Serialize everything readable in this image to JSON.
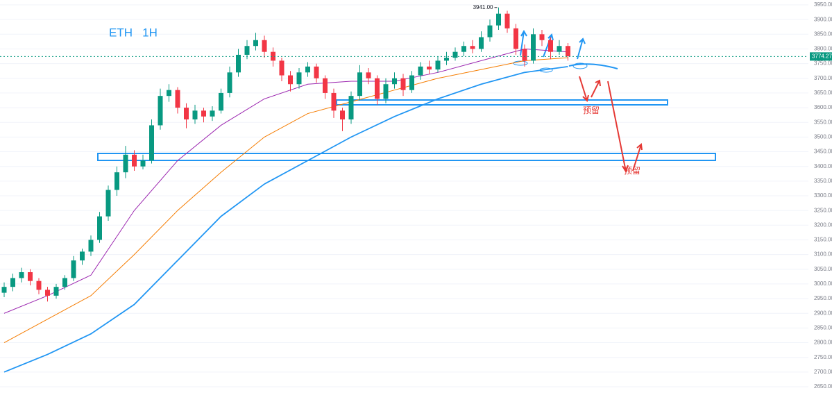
{
  "chart_data": {
    "type": "candlestick",
    "title": "ETH   1H",
    "open": [
      2970,
      2990,
      3020,
      3040,
      3010,
      2980,
      2960,
      2990,
      3020,
      3080,
      3110,
      3150,
      3230,
      3320,
      3380,
      3440,
      3400,
      3420,
      3540,
      3640,
      3660,
      3600,
      3560,
      3590,
      3570,
      3590,
      3650,
      3720,
      3780,
      3810,
      3830,
      3790,
      3760,
      3710,
      3680,
      3720,
      3740,
      3700,
      3650,
      3590,
      3560,
      3640,
      3720,
      3700,
      3630,
      3680,
      3700,
      3660,
      3710,
      3740,
      3730,
      3760,
      3770,
      3790,
      3810,
      3800,
      3840,
      3880,
      3920,
      3870,
      3800,
      3760,
      3850,
      3830,
      3790,
      3810
    ],
    "high": [
      3005,
      3035,
      3055,
      3050,
      3020,
      2990,
      3000,
      3030,
      3095,
      3120,
      3165,
      3245,
      3335,
      3400,
      3470,
      3455,
      3440,
      3560,
      3665,
      3680,
      3670,
      3615,
      3610,
      3600,
      3605,
      3665,
      3740,
      3800,
      3830,
      3855,
      3845,
      3805,
      3770,
      3725,
      3735,
      3755,
      3750,
      3710,
      3665,
      3600,
      3655,
      3745,
      3735,
      3710,
      3700,
      3720,
      3715,
      3725,
      3755,
      3760,
      3775,
      3790,
      3805,
      3825,
      3830,
      3860,
      3900,
      3941,
      3930,
      3885,
      3815,
      3870,
      3865,
      3840,
      3830,
      3820
    ],
    "low": [
      2955,
      2975,
      3005,
      2995,
      2965,
      2940,
      2950,
      2980,
      3010,
      3065,
      3095,
      3140,
      3215,
      3300,
      3360,
      3385,
      3390,
      3410,
      3525,
      3620,
      3580,
      3530,
      3545,
      3550,
      3555,
      3580,
      3635,
      3705,
      3765,
      3795,
      3770,
      3740,
      3690,
      3655,
      3665,
      3705,
      3685,
      3630,
      3565,
      3520,
      3545,
      3625,
      3680,
      3610,
      3615,
      3665,
      3640,
      3650,
      3695,
      3715,
      3720,
      3745,
      3760,
      3775,
      3785,
      3790,
      3825,
      3865,
      3855,
      3780,
      3740,
      3750,
      3810,
      3765,
      3780,
      3760
    ],
    "close": [
      2990,
      3020,
      3040,
      3010,
      2980,
      2960,
      2990,
      3020,
      3080,
      3110,
      3150,
      3230,
      3320,
      3380,
      3440,
      3400,
      3420,
      3540,
      3640,
      3660,
      3600,
      3560,
      3590,
      3570,
      3590,
      3650,
      3720,
      3780,
      3810,
      3830,
      3790,
      3760,
      3710,
      3680,
      3720,
      3740,
      3700,
      3650,
      3590,
      3560,
      3640,
      3720,
      3700,
      3630,
      3680,
      3700,
      3660,
      3710,
      3740,
      3730,
      3760,
      3770,
      3790,
      3810,
      3800,
      3840,
      3880,
      3920,
      3870,
      3800,
      3760,
      3850,
      3830,
      3790,
      3810,
      3775
    ],
    "up_color": "#089981",
    "down_color": "#f23645",
    "moving_averages": [
      {
        "color": "#2196f3",
        "x": [
          0,
          5,
          10,
          15,
          20,
          25,
          30,
          35,
          40,
          45,
          50,
          55,
          60,
          65
        ],
        "values": [
          2700,
          2760,
          2830,
          2930,
          3080,
          3230,
          3340,
          3420,
          3500,
          3570,
          3630,
          3680,
          3720,
          3740
        ]
      },
      {
        "color": "#f57c00",
        "x": [
          0,
          5,
          10,
          15,
          20,
          25,
          30,
          35,
          40,
          45,
          50,
          55,
          60,
          65
        ],
        "values": [
          2800,
          2880,
          2960,
          3100,
          3250,
          3380,
          3500,
          3580,
          3620,
          3660,
          3700,
          3730,
          3760,
          3770
        ]
      },
      {
        "color": "#9c27b0",
        "x": [
          0,
          5,
          10,
          15,
          20,
          25,
          30,
          35,
          40,
          45,
          50,
          55,
          60,
          65
        ],
        "values": [
          2900,
          2960,
          3030,
          3250,
          3420,
          3540,
          3630,
          3680,
          3690,
          3690,
          3720,
          3760,
          3800,
          3790
        ]
      }
    ],
    "ylim": [
      2650,
      3950
    ],
    "yticks": [
      {
        "value": 2650,
        "label": "2650.00"
      },
      {
        "value": 2700,
        "label": "2700.00"
      },
      {
        "value": 2750,
        "label": "2750.00"
      },
      {
        "value": 2800,
        "label": "2800.00"
      },
      {
        "value": 2850,
        "label": "2850.00"
      },
      {
        "value": 2900,
        "label": "2900.00"
      },
      {
        "value": 2950,
        "label": "2950.00"
      },
      {
        "value": 3000,
        "label": "3000.00"
      },
      {
        "value": 3050,
        "label": "3050.00"
      },
      {
        "value": 3100,
        "label": "3100.00"
      },
      {
        "value": 3150,
        "label": "3150.00"
      },
      {
        "value": 3200,
        "label": "3200.00"
      },
      {
        "value": 3250,
        "label": "3250.00"
      },
      {
        "value": 3300,
        "label": "3300.00"
      },
      {
        "value": 3350,
        "label": "3350.00"
      },
      {
        "value": 3400,
        "label": "3400.00"
      },
      {
        "value": 3450,
        "label": "3450.00"
      },
      {
        "value": 3500,
        "label": "3500.00"
      },
      {
        "value": 3550,
        "label": "3550.00"
      },
      {
        "value": 3600,
        "label": "3600.00"
      },
      {
        "value": 3650,
        "label": "3650.00"
      },
      {
        "value": 3700,
        "label": "3700.00"
      },
      {
        "value": 3750,
        "label": "3750.00"
      },
      {
        "value": 3800,
        "label": "3800.00"
      },
      {
        "value": 3850,
        "label": "3850.00"
      },
      {
        "value": 3900,
        "label": "3900.00"
      },
      {
        "value": 3950,
        "label": "3950.00"
      }
    ],
    "grid": true,
    "last_price": 3774.27,
    "high_marker": {
      "value": 3941,
      "label": "3941.00"
    },
    "annotations": [
      "预留",
      "预留"
    ]
  }
}
